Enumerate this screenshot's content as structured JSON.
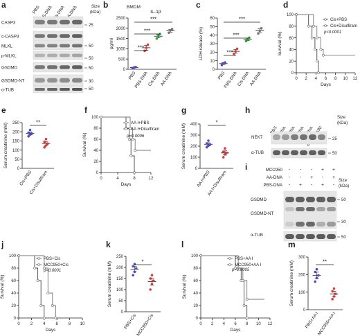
{
  "panels": {
    "a": {
      "letter": "a",
      "lanes": [
        "PBS",
        "PBS-DNA",
        "Cis-DNA",
        "AA-DNA"
      ],
      "size_label": "Size\n(kDa)",
      "rows": [
        "CASP3",
        "c-CASP3",
        "MLKL",
        "p-MLKL",
        "GSDMD",
        "GSDMD-NT",
        "α-TUB"
      ],
      "markers": [
        "25",
        "50",
        "50",
        "50",
        "30",
        "50"
      ]
    },
    "b": {
      "letter": "b",
      "sig": [
        "***",
        "***",
        "***"
      ]
    },
    "c": {
      "letter": "c",
      "sig": [
        "***",
        "***",
        "***"
      ]
    },
    "d": {
      "letter": "d",
      "pvalue": "p<0.0001"
    },
    "e": {
      "letter": "e",
      "sig": "**"
    },
    "f": {
      "letter": "f",
      "pvalue": "p=0.0006"
    },
    "g": {
      "letter": "g",
      "sig": "*"
    },
    "h": {
      "letter": "h",
      "lanes": [
        "PBS",
        "PBS-DNA",
        "Cis-DNA",
        "AA-DNA",
        "LPS-DNA",
        "cs-dsDNA90"
      ],
      "rows": [
        "NEK7",
        "α-TUB"
      ],
      "size_label": "Size\n(kDa)",
      "markers": [
        "25",
        "50"
      ]
    },
    "i": {
      "letter": "i",
      "conds": [
        {
          "name": "MCC950",
          "vals": [
            "-",
            "-",
            "-",
            "+",
            "+"
          ]
        },
        {
          "name": "AA-DNA",
          "vals": [
            "-",
            "-",
            "+",
            "-",
            "+"
          ]
        },
        {
          "name": "PBS-DNA",
          "vals": [
            "-",
            "+",
            "-",
            "+",
            "-"
          ]
        }
      ],
      "size_label": "Size\n(kDa)",
      "rows": [
        "GSDMD",
        "GSDMD-NT",
        "α-TUB"
      ],
      "markers": [
        "50",
        "30",
        "50"
      ]
    },
    "j": {
      "letter": "j",
      "pvalue": "p<0.0001"
    },
    "k": {
      "letter": "k",
      "sig": "*"
    },
    "l": {
      "letter": "l",
      "pvalue": "p=0.0005"
    },
    "m": {
      "letter": "m",
      "sig": "**"
    }
  },
  "chart_data": [
    {
      "id": "b",
      "type": "scatter",
      "title": "IL-1β",
      "subtitle": "BMDM",
      "ylabel": "pg/ml",
      "ylim": [
        0,
        2500
      ],
      "yticks": [
        0,
        500,
        1000,
        1500,
        2000,
        2500
      ],
      "categories": [
        "PBS",
        "PBS-DNA",
        "Cis-DNA",
        "AA-DNA"
      ],
      "colors": [
        "#4f4ec0",
        "#d63b3b",
        "#2a9a3a",
        "#777777"
      ],
      "values": [
        [
          60,
          90,
          110
        ],
        [
          900,
          1050,
          1200
        ],
        [
          1500,
          1620,
          1720
        ],
        [
          1780,
          1900,
          1960
        ]
      ]
    },
    {
      "id": "c",
      "type": "scatter",
      "ylabel": "LDH release (%)",
      "ylim": [
        0,
        60
      ],
      "yticks": [
        0,
        10,
        20,
        30,
        40,
        50,
        60
      ],
      "categories": [
        "PBS",
        "PBS-DNA",
        "Cis-DNA",
        "AA-DNA"
      ],
      "colors": [
        "#4f4ec0",
        "#d63b3b",
        "#2a9a3a",
        "#777777"
      ],
      "values": [
        [
          5,
          7,
          8
        ],
        [
          18,
          21,
          24
        ],
        [
          33,
          35,
          37
        ],
        [
          42,
          45,
          48
        ]
      ]
    },
    {
      "id": "d",
      "type": "line",
      "xlabel": "Days",
      "ylabel": "Survival (%)",
      "xlim": [
        0,
        12
      ],
      "ylim": [
        0,
        100
      ],
      "xticks": [
        0,
        2,
        4,
        6,
        8,
        10,
        12
      ],
      "yticks": [
        0,
        20,
        40,
        60,
        80,
        100
      ],
      "series": [
        {
          "name": "Cis+PBS",
          "points": [
            [
              0,
              100
            ],
            [
              2.5,
              100
            ],
            [
              2.5,
              80
            ],
            [
              3.2,
              80
            ],
            [
              3.2,
              60
            ],
            [
              3.8,
              60
            ],
            [
              3.8,
              40
            ],
            [
              4.2,
              40
            ],
            [
              4.2,
              20
            ],
            [
              4.5,
              20
            ],
            [
              4.5,
              0
            ]
          ]
        },
        {
          "name": "Cis+Disulfiram",
          "points": [
            [
              0,
              100
            ],
            [
              3.5,
              100
            ],
            [
              3.5,
              80
            ],
            [
              4.2,
              80
            ],
            [
              4.2,
              60
            ],
            [
              5,
              60
            ],
            [
              5,
              40
            ],
            [
              5.5,
              40
            ],
            [
              5.5,
              30
            ],
            [
              12,
              30
            ]
          ]
        }
      ]
    },
    {
      "id": "e",
      "type": "scatter",
      "ylabel": "Serum creatinine (mM)",
      "ylim": [
        0,
        250
      ],
      "yticks": [
        0,
        50,
        100,
        150,
        200,
        250
      ],
      "categories": [
        "Cis+PBS",
        "Cis+Disulfiram"
      ],
      "colors": [
        "#4f4ec0",
        "#d63b3b"
      ],
      "values": [
        [
          175,
          185,
          190,
          195,
          210
        ],
        [
          115,
          125,
          135,
          145,
          160
        ]
      ]
    },
    {
      "id": "f",
      "type": "line",
      "xlabel": "Days",
      "ylabel": "Survival (%)",
      "xlim": [
        0,
        12
      ],
      "ylim": [
        0,
        100
      ],
      "xticks": [
        0,
        4,
        8,
        12
      ],
      "yticks": [
        0,
        20,
        40,
        60,
        80,
        100
      ],
      "series": [
        {
          "name": "AA I+PBS",
          "points": [
            [
              0,
              100
            ],
            [
              6,
              100
            ],
            [
              6,
              80
            ],
            [
              6.8,
              80
            ],
            [
              6.8,
              60
            ],
            [
              7.2,
              60
            ],
            [
              7.2,
              30
            ],
            [
              8,
              30
            ],
            [
              8,
              0
            ]
          ]
        },
        {
          "name": "AA I+Disulfiram",
          "points": [
            [
              0,
              100
            ],
            [
              7,
              100
            ],
            [
              7,
              80
            ],
            [
              7.6,
              80
            ],
            [
              7.6,
              60
            ],
            [
              8.2,
              60
            ],
            [
              8.2,
              40
            ],
            [
              12,
              40
            ]
          ]
        }
      ]
    },
    {
      "id": "g",
      "type": "scatter",
      "ylabel": "Serum creatinine (mM)",
      "ylim": [
        0,
        400
      ],
      "yticks": [
        0,
        100,
        200,
        300,
        400
      ],
      "categories": [
        "AA I+PBS",
        "AA I+Disulfiram"
      ],
      "colors": [
        "#4f4ec0",
        "#d63b3b"
      ],
      "values": [
        [
          190,
          205,
          215,
          225,
          250
        ],
        [
          100,
          125,
          140,
          150,
          180
        ]
      ]
    },
    {
      "id": "j",
      "type": "line",
      "xlabel": "Days",
      "ylabel": "Survival (%)",
      "xlim": [
        0,
        10
      ],
      "ylim": [
        0,
        100
      ],
      "xticks": [
        0,
        2,
        4,
        6,
        8,
        10
      ],
      "yticks": [
        0,
        20,
        40,
        60,
        80,
        100
      ],
      "series": [
        {
          "name": "PBS+Cis",
          "points": [
            [
              0,
              100
            ],
            [
              2.5,
              100
            ],
            [
              2.5,
              80
            ],
            [
              3,
              80
            ],
            [
              3,
              60
            ],
            [
              3.5,
              60
            ],
            [
              3.5,
              20
            ],
            [
              4,
              20
            ],
            [
              4,
              0
            ]
          ]
        },
        {
          "name": "MCC950+Cis",
          "points": [
            [
              0,
              100
            ],
            [
              4,
              100
            ],
            [
              4,
              80
            ],
            [
              4.6,
              80
            ],
            [
              4.6,
              40
            ],
            [
              5.3,
              40
            ],
            [
              5.3,
              20
            ],
            [
              5.8,
              20
            ],
            [
              5.8,
              0
            ]
          ]
        }
      ]
    },
    {
      "id": "k",
      "type": "scatter",
      "ylabel": "Serum creatinine (mM)",
      "ylim": [
        0,
        250
      ],
      "yticks": [
        0,
        50,
        100,
        150,
        200,
        250
      ],
      "categories": [
        "PBS+Cis",
        "MCC950+Cis"
      ],
      "colors": [
        "#4f4ec0",
        "#d63b3b"
      ],
      "values": [
        [
          165,
          180,
          195,
          205,
          215
        ],
        [
          100,
          125,
          140,
          150,
          165
        ]
      ]
    },
    {
      "id": "l",
      "type": "line",
      "xlabel": "Days",
      "ylabel": "Survival (%)",
      "xlim": [
        0,
        12
      ],
      "ylim": [
        0,
        100
      ],
      "xticks": [
        0,
        2,
        4,
        6,
        8,
        10,
        12
      ],
      "yticks": [
        0,
        20,
        40,
        60,
        80,
        100
      ],
      "series": [
        {
          "name": "PBS+AA I",
          "points": [
            [
              0,
              100
            ],
            [
              6,
              100
            ],
            [
              6,
              80
            ],
            [
              7,
              80
            ],
            [
              7,
              60
            ],
            [
              7.5,
              60
            ],
            [
              7.5,
              20
            ],
            [
              8,
              20
            ],
            [
              8,
              0
            ]
          ]
        },
        {
          "name": "MCC950+AA I",
          "points": [
            [
              0,
              100
            ],
            [
              6.5,
              100
            ],
            [
              6.5,
              80
            ],
            [
              7.3,
              80
            ],
            [
              7.3,
              60
            ],
            [
              8,
              60
            ],
            [
              8,
              30
            ],
            [
              11,
              30
            ]
          ]
        }
      ]
    },
    {
      "id": "m",
      "type": "scatter",
      "ylabel": "Serum creatinine (mM)",
      "ylim": [
        0,
        300
      ],
      "yticks": [
        0,
        100,
        200,
        300
      ],
      "categories": [
        "PBS+AA I",
        "MCC950+AA I"
      ],
      "colors": [
        "#4f4ec0",
        "#d63b3b"
      ],
      "values": [
        [
          160,
          180,
          195,
          215,
          230
        ],
        [
          60,
          75,
          90,
          105,
          120
        ]
      ]
    }
  ]
}
